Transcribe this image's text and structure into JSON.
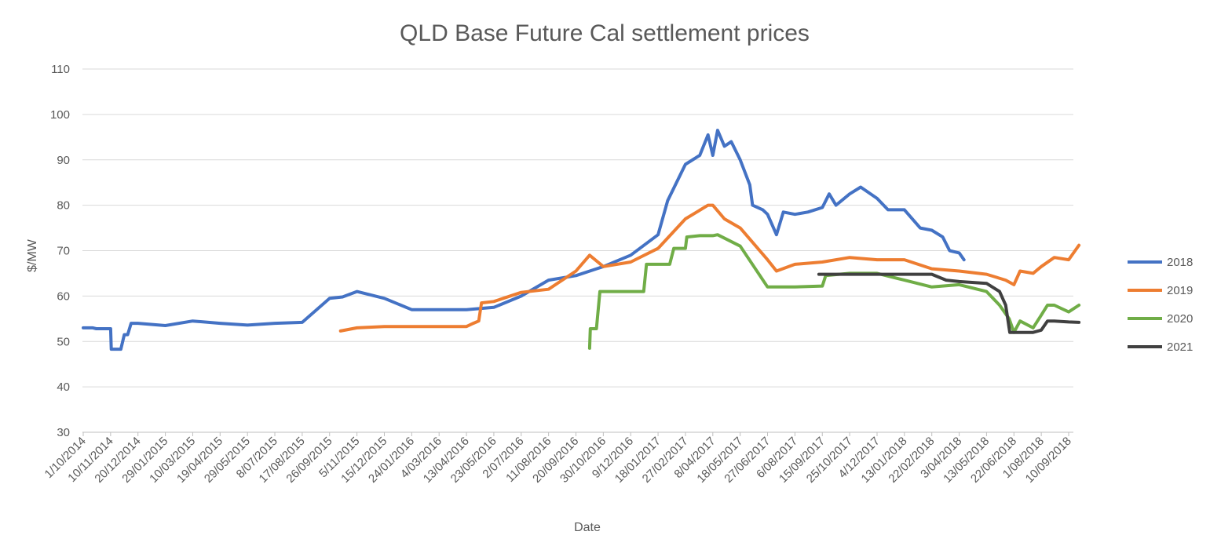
{
  "chart_data": {
    "type": "line",
    "title": "QLD Base Future Cal settlement prices",
    "xlabel": "Date",
    "ylabel": "$/MW",
    "ylim": [
      30,
      110
    ],
    "yticks": [
      30,
      40,
      50,
      60,
      70,
      80,
      90,
      100,
      110
    ],
    "grid": "horizontal",
    "legend_position": "right",
    "x_tick_labels": [
      "1/10/2014",
      "10/11/2014",
      "20/12/2014",
      "29/01/2015",
      "10/03/2015",
      "19/04/2015",
      "29/05/2015",
      "8/07/2015",
      "17/08/2015",
      "26/09/2015",
      "5/11/2015",
      "15/12/2015",
      "24/01/2016",
      "4/03/2016",
      "13/04/2016",
      "23/05/2016",
      "2/07/2016",
      "11/08/2016",
      "20/09/2016",
      "30/10/2016",
      "9/12/2016",
      "18/01/2017",
      "27/02/2017",
      "8/04/2017",
      "18/05/2017",
      "27/06/2017",
      "6/08/2017",
      "15/09/2017",
      "25/10/2017",
      "4/12/2017",
      "13/01/2018",
      "22/02/2018",
      "3/04/2018",
      "13/05/2018",
      "22/06/2018",
      "1/08/2018",
      "10/09/2018"
    ],
    "series": [
      {
        "name": "2018",
        "color": "#4472c4",
        "x": [
          "1/10/2014",
          "15/10/2014",
          "20/10/2014",
          "10/11/2014",
          "11/11/2014",
          "25/11/2014",
          "30/11/2014",
          "5/12/2014",
          "10/12/2014",
          "20/12/2014",
          "29/01/2015",
          "10/03/2015",
          "19/04/2015",
          "29/05/2015",
          "8/07/2015",
          "17/08/2015",
          "26/09/2015",
          "15/10/2015",
          "5/11/2015",
          "15/12/2015",
          "24/01/2016",
          "4/03/2016",
          "13/04/2016",
          "23/05/2016",
          "2/07/2016",
          "11/08/2016",
          "20/09/2016",
          "30/10/2016",
          "9/12/2016",
          "18/01/2017",
          "1/02/2017",
          "27/02/2017",
          "20/03/2017",
          "1/04/2017",
          "8/04/2017",
          "15/04/2017",
          "25/04/2017",
          "5/05/2017",
          "18/05/2017",
          "1/06/2017",
          "5/06/2017",
          "20/06/2017",
          "27/06/2017",
          "10/07/2017",
          "20/07/2017",
          "6/08/2017",
          "25/08/2017",
          "15/09/2017",
          "25/09/2017",
          "5/10/2017",
          "25/10/2017",
          "10/11/2017",
          "4/12/2017",
          "20/12/2017",
          "13/01/2018",
          "5/02/2018",
          "22/02/2018",
          "10/03/2018",
          "20/03/2018",
          "3/04/2018",
          "10/04/2018"
        ],
        "values": [
          53,
          53,
          52.8,
          52.8,
          48.3,
          48.3,
          51.5,
          51.5,
          54,
          54,
          53.5,
          54.5,
          54,
          53.6,
          54,
          54.2,
          59.5,
          59.8,
          61,
          59.5,
          57,
          57,
          57,
          57.5,
          60,
          63.5,
          64.5,
          66.5,
          69,
          73.5,
          81,
          89,
          91,
          95.5,
          91,
          96.5,
          93,
          94,
          90,
          84.5,
          80,
          79,
          78,
          73.5,
          78.5,
          78,
          78.5,
          79.5,
          82.5,
          80,
          82.5,
          84,
          81.5,
          79,
          79,
          75,
          74.5,
          73,
          70,
          69.5,
          68
        ]
      },
      {
        "name": "2019",
        "color": "#ed7d31",
        "x": [
          "12/10/2015",
          "5/11/2015",
          "15/12/2015",
          "24/01/2016",
          "4/03/2016",
          "13/04/2016",
          "23/04/2016",
          "1/05/2016",
          "5/05/2016",
          "23/05/2016",
          "2/07/2016",
          "11/08/2016",
          "20/09/2016",
          "10/10/2016",
          "30/10/2016",
          "9/12/2016",
          "18/01/2017",
          "27/02/2017",
          "1/04/2017",
          "8/04/2017",
          "25/04/2017",
          "18/05/2017",
          "27/06/2017",
          "10/07/2017",
          "6/08/2017",
          "15/09/2017",
          "25/10/2017",
          "4/12/2017",
          "13/01/2018",
          "22/02/2018",
          "3/04/2018",
          "13/05/2018",
          "10/06/2018",
          "22/06/2018",
          "1/07/2018",
          "20/07/2018",
          "1/08/2018",
          "20/08/2018",
          "10/09/2018",
          "25/09/2018"
        ],
        "values": [
          52.3,
          53,
          53.3,
          53.3,
          53.3,
          53.3,
          54,
          54.5,
          58.5,
          58.8,
          60.8,
          61.5,
          65.5,
          69,
          66.5,
          67.5,
          70.5,
          77,
          80,
          80,
          77,
          75,
          68,
          65.5,
          67,
          67.5,
          68.5,
          68,
          68,
          66,
          65.5,
          64.8,
          63.5,
          62.5,
          65.5,
          65,
          66.5,
          68.5,
          68,
          71.2
        ]
      },
      {
        "name": "2020",
        "color": "#70ad47",
        "x": [
          "10/10/2016",
          "11/10/2016",
          "20/10/2016",
          "25/10/2016",
          "30/10/2016",
          "9/12/2016",
          "28/12/2016",
          "1/01/2017",
          "18/01/2017",
          "4/02/2017",
          "10/02/2017",
          "27/02/2017",
          "1/03/2017",
          "20/03/2017",
          "8/04/2017",
          "15/04/2017",
          "18/05/2017",
          "27/06/2017",
          "6/07/2017",
          "6/08/2017",
          "15/09/2017",
          "20/09/2017",
          "25/10/2017",
          "4/12/2017",
          "13/01/2018",
          "22/02/2018",
          "3/04/2018",
          "13/05/2018",
          "1/06/2018",
          "15/06/2018",
          "22/06/2018",
          "1/07/2018",
          "20/07/2018",
          "1/08/2018",
          "10/08/2018",
          "20/08/2018",
          "10/09/2018",
          "25/09/2018"
        ],
        "values": [
          48.5,
          52.8,
          52.8,
          61,
          61,
          61,
          61,
          67,
          67,
          67,
          70.5,
          70.5,
          73,
          73.3,
          73.3,
          73.5,
          71,
          62,
          62,
          62,
          62.2,
          64.5,
          65,
          65,
          63.5,
          62,
          62.5,
          61,
          58,
          55,
          52,
          54.5,
          53,
          55.8,
          58,
          58,
          56.5,
          58
        ]
      },
      {
        "name": "2021",
        "color": "#404040",
        "x": [
          "10/09/2017",
          "15/09/2017",
          "25/10/2017",
          "4/12/2017",
          "13/01/2018",
          "22/02/2018",
          "15/03/2018",
          "3/04/2018",
          "13/05/2018",
          "1/06/2018",
          "10/06/2018",
          "16/06/2018",
          "22/06/2018",
          "1/07/2018",
          "20/07/2018",
          "1/08/2018",
          "10/08/2018",
          "20/08/2018",
          "10/09/2018",
          "25/09/2018"
        ],
        "values": [
          64.8,
          64.8,
          64.8,
          64.8,
          64.8,
          64.8,
          63.5,
          63.2,
          62.8,
          61,
          58,
          52,
          52,
          52,
          52,
          52.5,
          54.5,
          54.5,
          54.3,
          54.2
        ]
      }
    ]
  }
}
